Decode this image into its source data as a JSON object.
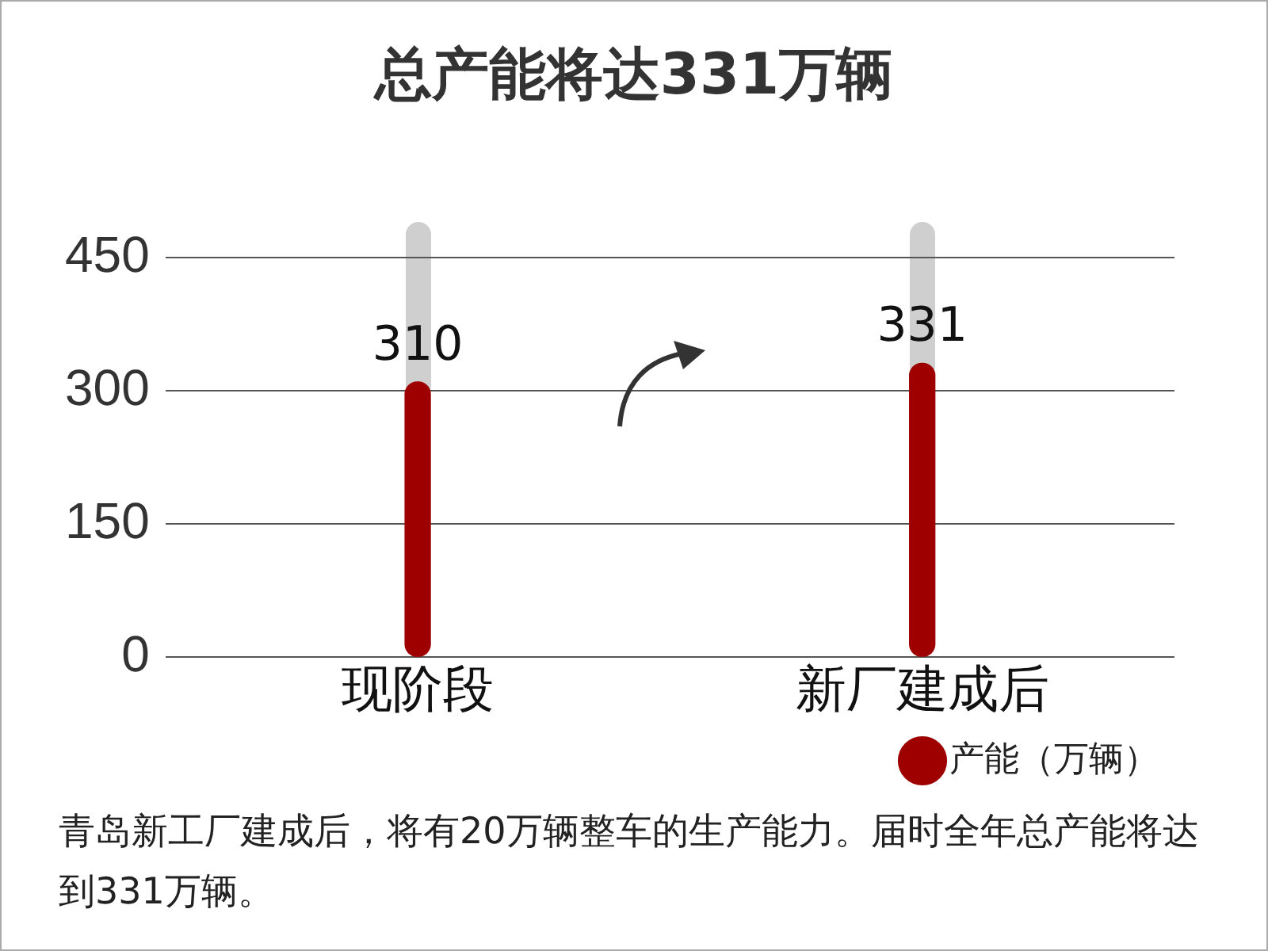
{
  "chart_data": {
    "type": "bar",
    "title": "总产能将达331万辆",
    "categories": [
      "现阶段",
      "新厂建成后"
    ],
    "series": [
      {
        "name": "产能（万辆）",
        "color": "#9e0000",
        "values": [
          310,
          331
        ]
      }
    ],
    "ylim": [
      0,
      490
    ],
    "yticks": [
      0,
      150,
      300,
      450
    ],
    "grid": "y",
    "legend": "bottom",
    "data_labels": true,
    "annotations": [
      "青岛新工厂建成后，将有20万辆整车的生产能力。届时全年总产能将达到331万辆。"
    ]
  }
}
